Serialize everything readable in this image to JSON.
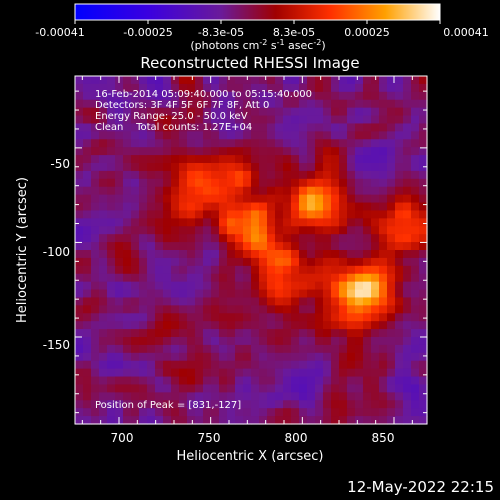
{
  "colorbar": {
    "ticks": [
      "-0.00041",
      "-0.00025",
      "-8.3e-05",
      "8.3e-05",
      "0.00025",
      "0.00041"
    ],
    "units_prefix": "(photons cm",
    "units_sup1": "-2",
    "units_mid": " s",
    "units_sup2": "-1",
    "units_suffix": " asec",
    "units_sup3": "-2",
    "units_close": ")",
    "min": -0.00041,
    "max": 0.00041
  },
  "plot": {
    "title": "Reconstructed RHESSI Image",
    "xlabel": "Heliocentric X (arcsec)",
    "ylabel": "Heliocentric Y (arcsec)",
    "xticks": [
      "700",
      "750",
      "800",
      "850"
    ],
    "yticks": [
      "-50",
      "-100",
      "-150"
    ],
    "info": [
      "16-Feb-2014 05:09:40.000 to 05:15:40.000",
      "Detectors: 3F 4F 5F 6F 7F 8F, Att 0",
      "Energy Range: 25.0 - 50.0 keV",
      "Clean    Total counts: 1.27E+04"
    ],
    "peak_label": "Position of Peak = [831,-127]"
  },
  "chart_data": {
    "type": "heatmap",
    "title": "Reconstructed RHESSI Image",
    "xlabel": "Heliocentric X (arcsec)",
    "ylabel": "Heliocentric Y (arcsec)",
    "xlim": [
      676,
      868
    ],
    "ylim": [
      -196,
      -12
    ],
    "peak": [
      831,
      -127
    ],
    "sources": [
      {
        "x": 831,
        "y": -127,
        "amplitude": 0.00041
      },
      {
        "x": 808,
        "y": -80,
        "amplitude": 0.00033
      },
      {
        "x": 770,
        "y": -92,
        "amplitude": 0.00031
      },
      {
        "x": 856,
        "y": -88,
        "amplitude": 0.00026
      },
      {
        "x": 760,
        "y": -65,
        "amplitude": 0.00022
      },
      {
        "x": 790,
        "y": -115,
        "amplitude": 0.00024
      },
      {
        "x": 735,
        "y": -75,
        "amplitude": 0.00018
      }
    ],
    "grid": false
  },
  "footer": {
    "date": "12-May-2022 22:15"
  }
}
